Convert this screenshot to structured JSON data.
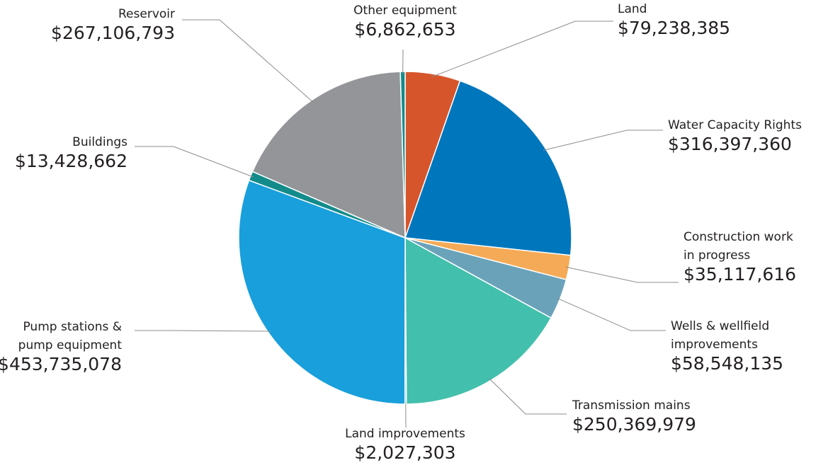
{
  "chart_data": {
    "type": "pie",
    "categories": [
      "Land",
      "Water Capacity Rights",
      "Construction work\nin progress",
      "Wells & wellfield\nimprovements",
      "Transmission mains",
      "Land improvements",
      "Pump stations &\npump equipment",
      "Buildings",
      "Reservoir",
      "Other equipment"
    ],
    "values": [
      79238385,
      316397360,
      35117616,
      58548135,
      250369979,
      2027303,
      453735078,
      13428662,
      267106793,
      6862653
    ],
    "value_labels": [
      "$79,238,385",
      "$316,397,360",
      "$35,117,616",
      "$58,548,135",
      "$250,369,979",
      "$2,027,303",
      "$453,735,078",
      "$13,428,662",
      "$267,106,793",
      "$6,862,653"
    ],
    "colors": [
      "#d6552b",
      "#0077bd",
      "#f4aa56",
      "#6aa2ba",
      "#43bfad",
      "#1fa0d6",
      "#199fdb",
      "#138b8b",
      "#939598",
      "#138b8b"
    ]
  }
}
